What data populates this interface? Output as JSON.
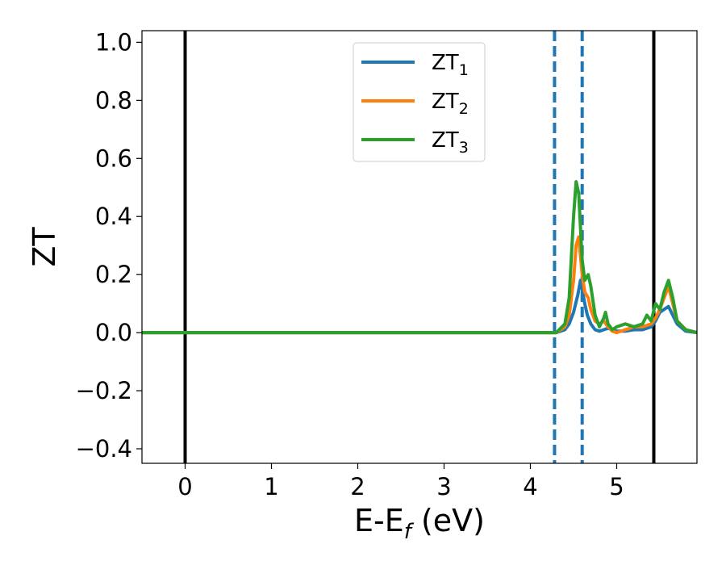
{
  "chart_data": {
    "type": "line",
    "title": "",
    "xlabel": {
      "main": "E-E",
      "sub": "f",
      "tail": " (eV)"
    },
    "ylabel": "ZT",
    "xlim": [
      -0.5,
      5.93
    ],
    "ylim": [
      -0.45,
      1.04
    ],
    "xticks": [
      0,
      1,
      2,
      3,
      4,
      5
    ],
    "xtick_labels": [
      "0",
      "1",
      "2",
      "3",
      "4",
      "5"
    ],
    "yticks": [
      -0.4,
      -0.2,
      0.0,
      0.2,
      0.4,
      0.6,
      0.8,
      1.0
    ],
    "ytick_labels": [
      "−0.4",
      "−0.2",
      "0.0",
      "0.2",
      "0.4",
      "0.6",
      "0.8",
      "1.0"
    ],
    "grid": false,
    "legend": {
      "placement": "upper-center",
      "entries": [
        {
          "base": "ZT",
          "sub": "1"
        },
        {
          "base": "ZT",
          "sub": "2"
        },
        {
          "base": "ZT",
          "sub": "3"
        }
      ]
    },
    "vlines": [
      {
        "x": 0.0,
        "style": "solid",
        "color": "#000000"
      },
      {
        "x": 5.43,
        "style": "solid",
        "color": "#000000"
      },
      {
        "x": 4.28,
        "style": "dashed",
        "color": "#1f77b4"
      },
      {
        "x": 4.6,
        "style": "dashed",
        "color": "#1f77b4"
      }
    ],
    "series": [
      {
        "name": "ZT1",
        "color": "#1f77b4",
        "x": [
          -0.5,
          4.3,
          4.4,
          4.45,
          4.5,
          4.55,
          4.58,
          4.6,
          4.63,
          4.66,
          4.7,
          4.75,
          4.8,
          4.85,
          4.9,
          4.95,
          5.0,
          5.1,
          5.2,
          5.3,
          5.4,
          5.45,
          5.5,
          5.55,
          5.6,
          5.65,
          5.7,
          5.8,
          5.93
        ],
        "y": [
          0.0,
          0.0,
          0.01,
          0.03,
          0.07,
          0.13,
          0.18,
          0.15,
          0.1,
          0.06,
          0.03,
          0.01,
          0.005,
          0.01,
          0.015,
          0.01,
          0.005,
          0.005,
          0.01,
          0.01,
          0.02,
          0.04,
          0.07,
          0.08,
          0.09,
          0.06,
          0.03,
          0.005,
          0.0
        ]
      },
      {
        "name": "ZT2",
        "color": "#ff7f0e",
        "x": [
          -0.5,
          4.3,
          4.4,
          4.45,
          4.5,
          4.53,
          4.56,
          4.6,
          4.63,
          4.67,
          4.7,
          4.75,
          4.8,
          4.85,
          4.9,
          4.95,
          5.0,
          5.1,
          5.2,
          5.3,
          5.4,
          5.45,
          5.5,
          5.55,
          5.6,
          5.65,
          5.7,
          5.8,
          5.93
        ],
        "y": [
          0.0,
          0.0,
          0.02,
          0.06,
          0.18,
          0.3,
          0.33,
          0.2,
          0.14,
          0.12,
          0.08,
          0.04,
          0.03,
          0.04,
          0.02,
          0.005,
          0.0,
          0.01,
          0.02,
          0.02,
          0.03,
          0.05,
          0.08,
          0.12,
          0.16,
          0.1,
          0.04,
          0.01,
          0.0
        ]
      },
      {
        "name": "ZT3",
        "color": "#2ca02c",
        "x": [
          -0.5,
          4.3,
          4.4,
          4.45,
          4.5,
          4.53,
          4.56,
          4.6,
          4.63,
          4.67,
          4.7,
          4.75,
          4.8,
          4.85,
          4.87,
          4.9,
          4.95,
          5.0,
          5.1,
          5.2,
          5.3,
          5.35,
          5.4,
          5.45,
          5.5,
          5.55,
          5.6,
          5.65,
          5.7,
          5.8,
          5.93
        ],
        "y": [
          0.0,
          0.0,
          0.03,
          0.12,
          0.4,
          0.52,
          0.48,
          0.25,
          0.18,
          0.2,
          0.16,
          0.06,
          0.02,
          0.05,
          0.07,
          0.03,
          0.01,
          0.02,
          0.03,
          0.02,
          0.03,
          0.06,
          0.04,
          0.1,
          0.08,
          0.14,
          0.18,
          0.12,
          0.04,
          0.01,
          0.0
        ]
      }
    ]
  }
}
